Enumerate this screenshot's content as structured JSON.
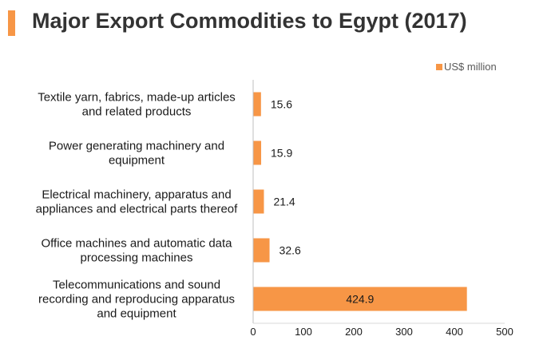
{
  "title": "Major Export Commodities to Egypt (2017)",
  "colors": {
    "accent": "#F79646",
    "bar": "#F79646"
  },
  "chart_data": {
    "type": "bar",
    "orientation": "horizontal",
    "categories": [
      [
        "Textile yarn, fabrics, made-up articles",
        "and related products"
      ],
      [
        "Power generating machinery and",
        "equipment"
      ],
      [
        "Electrical machinery, apparatus and",
        "appliances and electrical parts thereof"
      ],
      [
        "Office machines and automatic data",
        "processing machines"
      ],
      [
        "Telecommunications and sound",
        "recording and reproducing apparatus",
        "and equipment"
      ]
    ],
    "series": [
      {
        "name": "US$ million",
        "values": [
          15.6,
          15.9,
          21.4,
          32.6,
          424.9
        ]
      }
    ],
    "value_labels": [
      "15.6",
      "15.9",
      "21.4",
      "32.6",
      "424.9"
    ],
    "xlim": [
      0,
      500
    ],
    "xticks": [
      "0",
      "100",
      "200",
      "300",
      "400",
      "500"
    ],
    "grid": false,
    "legend_position": "top-right"
  }
}
